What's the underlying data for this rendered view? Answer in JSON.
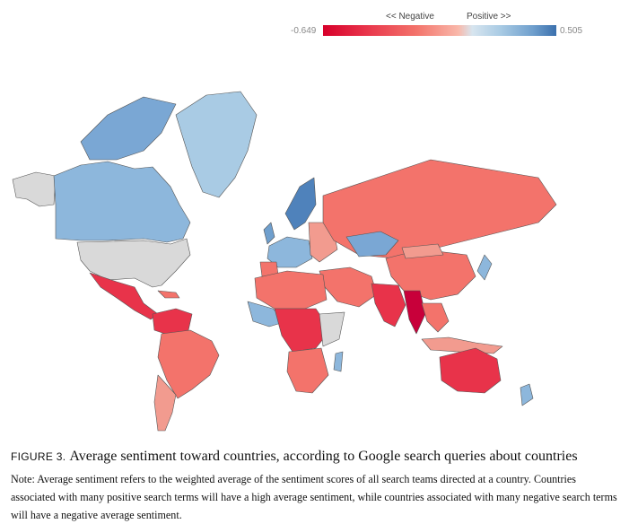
{
  "legend": {
    "negative_label": "<< Negative",
    "positive_label": "Positive >>",
    "min_value": "-0.649",
    "max_value": "0.505",
    "low_color": "#d7002a",
    "mid_color": "#e6e6ea",
    "high_color": "#3b70ad",
    "no_data_color": "#d9d9d9"
  },
  "figure": {
    "label": "FIGURE 3.",
    "title": "Average sentiment toward countries, according to Google search queries about countries",
    "note": "Note: Average sentiment refers to the weighted average of the sentiment scores of all search teams directed at a country. Countries associated with many positive search terms will have a high average sentiment, while countries associated with many negative search terms will have a negative average sentiment."
  }
}
